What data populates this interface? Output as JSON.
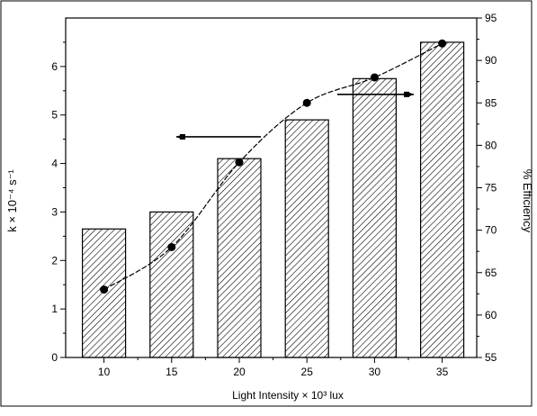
{
  "chart_data": {
    "type": "bar",
    "categories": [
      "10",
      "15",
      "20",
      "25",
      "30",
      "35"
    ],
    "values": [
      2.65,
      3.0,
      4.1,
      4.9,
      5.75,
      6.5
    ],
    "line_series": {
      "values": [
        63,
        68,
        78,
        85,
        88,
        92
      ],
      "axis": "right"
    },
    "xlabel": "Light Intensity × 10³ lux",
    "ylabel_left": "k × 10⁻⁴ s⁻¹",
    "ylabel_right": "% Efficiency",
    "ylim_left": [
      0,
      7
    ],
    "ylim_right": [
      55,
      95
    ],
    "yticks_left": [
      "0",
      "1",
      "2",
      "3",
      "4",
      "5",
      "6"
    ],
    "yticks_right": [
      "55",
      "60",
      "65",
      "70",
      "75",
      "80",
      "85",
      "90",
      "95"
    ],
    "legend_arrows": [
      "left-axis",
      "right-axis"
    ],
    "grid": false,
    "bar_fill": "diagonal-hatch",
    "colors": {
      "axis": "#000000",
      "bar_stroke": "#000000",
      "hatch": "#000000",
      "line": "#000000",
      "marker": "#000000"
    }
  }
}
